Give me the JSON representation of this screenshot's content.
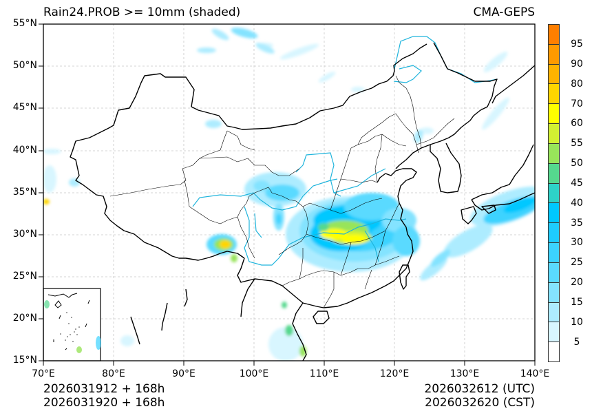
{
  "header": {
    "title": "Rain24.PROB >= 10mm (shaded)",
    "model": "CMA-GEPS"
  },
  "footer": {
    "init_utc": "2026031912 + 168h",
    "init_cst": "2026031920 + 168h",
    "valid_utc": "2026032612 (UTC)",
    "valid_cst": "2026032620 (CST)"
  },
  "axes": {
    "lat_labels": [
      "55°N",
      "50°N",
      "45°N",
      "40°N",
      "35°N",
      "30°N",
      "25°N",
      "20°N",
      "15°N"
    ],
    "lon_labels": [
      "70°E",
      "80°E",
      "90°E",
      "100°E",
      "110°E",
      "120°E",
      "130°E",
      "140°E"
    ],
    "lat_range": [
      15,
      55
    ],
    "lon_range": [
      70,
      140
    ]
  },
  "colorbar": {
    "labels": [
      "95",
      "90",
      "80",
      "70",
      "60",
      "55",
      "50",
      "45",
      "40",
      "35",
      "30",
      "25",
      "20",
      "15",
      "10",
      "5"
    ],
    "colors": [
      "#FF7F00",
      "#FF9A00",
      "#FFB300",
      "#FFD500",
      "#FFFF00",
      "#D2F032",
      "#98E45A",
      "#55D88E",
      "#2ED2C8",
      "#00C8FF",
      "#1ECCFF",
      "#3CD3FF",
      "#5ADAFF",
      "#84E3FF",
      "#ADECFF",
      "#D8F6FF",
      "#FFFFFF"
    ]
  },
  "map": {
    "country_border_color": "#000000",
    "river_color": "#1EB4DC",
    "grid_color": "#C8C8C8"
  }
}
